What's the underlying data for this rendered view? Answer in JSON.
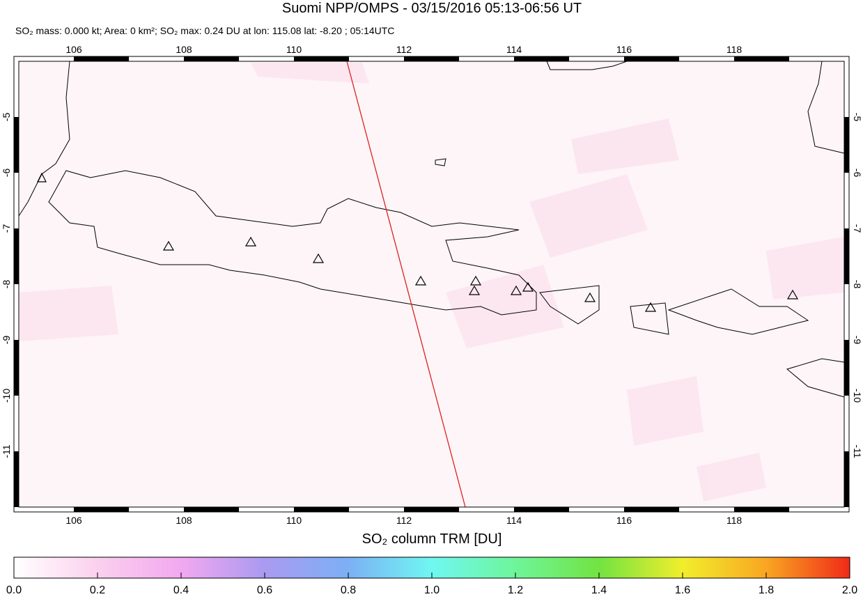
{
  "header": {
    "title": "Suomi NPP/OMPS - 03/15/2016 05:13-06:56 UT",
    "subtitle": "SO₂ mass: 0.000 kt; Area: 0 km²; SO₂ max: 0.24 DU at lon: 115.08 lat: -8.20 ; 05:14UTC"
  },
  "map": {
    "xlim": [
      105,
      120
    ],
    "ylim": [
      -12,
      -4
    ],
    "xticks": [
      106,
      108,
      110,
      112,
      114,
      116,
      118
    ],
    "yticks": [
      -11,
      -10,
      -9,
      -8,
      -7,
      -6,
      -5
    ],
    "grid": true
  },
  "colorbar": {
    "label": "SO₂ column TRM [DU]",
    "range": [
      0,
      2
    ],
    "ticks": [
      {
        "value": 0,
        "label": "0.0"
      },
      {
        "value": 0.2,
        "label": "0.2"
      },
      {
        "value": 0.4,
        "label": "0.4"
      },
      {
        "value": 0.6,
        "label": "0.6"
      },
      {
        "value": 0.8,
        "label": "0.8"
      },
      {
        "value": 1,
        "label": "1.0"
      },
      {
        "value": 1.2,
        "label": "1.2"
      },
      {
        "value": 1.4,
        "label": "1.4"
      },
      {
        "value": 1.6,
        "label": "1.6"
      },
      {
        "value": 1.8,
        "label": "1.8"
      },
      {
        "value": 2,
        "label": "2.0"
      }
    ]
  }
}
